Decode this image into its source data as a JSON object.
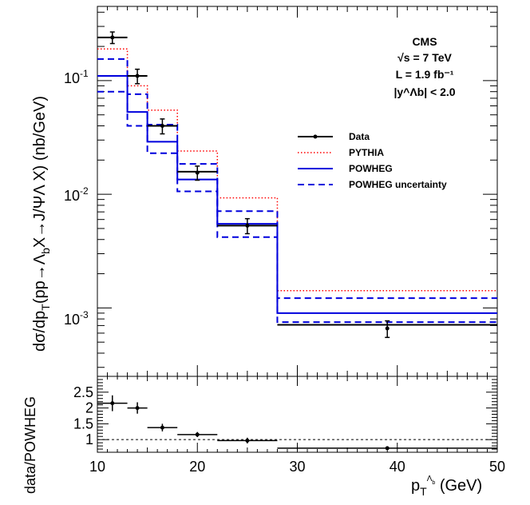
{
  "chart_data": [
    {
      "type": "step",
      "ylabel": "dσ/dp_T(pp→Λ_bX→J/ΨΛ X) (nb/GeV)",
      "yscale": "log",
      "xlim": [
        10,
        50
      ],
      "ylim": [
        0.00025,
        0.45
      ],
      "y_tick_labels": [
        {
          "value": 0.1,
          "base": "10",
          "exp": "-1"
        },
        {
          "value": 0.01,
          "base": "10",
          "exp": "-2"
        },
        {
          "value": 0.001,
          "base": "10",
          "exp": "-3"
        }
      ],
      "annotation": {
        "experiment": "CMS",
        "energy": "√s = 7 TeV",
        "lumi": "L = 1.9 fb⁻¹",
        "rapidity": "|y^Λb| < 2.0"
      },
      "legend_position": "right-middle",
      "bin_edges": [
        10,
        13,
        15,
        18,
        22,
        28,
        50
      ],
      "series": [
        {
          "name": "Data",
          "style": "points",
          "x": [
            11.5,
            14,
            16.5,
            20,
            25,
            39
          ],
          "y": [
            0.24,
            0.11,
            0.04,
            0.0155,
            0.0053,
            0.00066
          ],
          "err": [
            0.028,
            0.016,
            0.006,
            0.0022,
            0.0008,
            0.00011
          ],
          "xerr_low": [
            1.5,
            1,
            1.5,
            2,
            3,
            11
          ],
          "xerr_high": [
            1.5,
            1,
            1.5,
            2,
            3,
            11
          ],
          "bar": [
            0.24,
            0.11,
            0.04,
            0.0158,
            0.0053,
            0.00071
          ],
          "color": "#000000"
        },
        {
          "name": "PYTHIA",
          "style": "dotted",
          "values": [
            0.19,
            0.09,
            0.055,
            0.024,
            0.0093,
            0.00142
          ],
          "color": "#ff0000"
        },
        {
          "name": "POWHEG",
          "style": "solid",
          "values": [
            0.11,
            0.053,
            0.029,
            0.0135,
            0.0055,
            0.0009
          ],
          "color": "#0000dd"
        },
        {
          "name": "POWHEG uncertainty",
          "style": "dashed",
          "upper": [
            0.155,
            0.076,
            0.041,
            0.0185,
            0.0071,
            0.00122
          ],
          "lower": [
            0.08,
            0.04,
            0.023,
            0.0106,
            0.0042,
            0.00075
          ],
          "color": "#0000dd"
        }
      ]
    },
    {
      "type": "scatter",
      "xlabel": "p_T^Λb (GeV)",
      "ylabel": "data/POWHEG",
      "xlim": [
        10,
        50
      ],
      "ylim": [
        0.6,
        3.0
      ],
      "x_ticks": [
        10,
        20,
        30,
        40,
        50
      ],
      "y_ticks": [
        1,
        1.5,
        2,
        2.5
      ],
      "y_tick_labels": [
        "1",
        "1.5",
        "2",
        "2.5"
      ],
      "reference_line": 1,
      "series": [
        {
          "name": "",
          "x": [
            11.5,
            14,
            16.5,
            20,
            25,
            39
          ],
          "y": [
            2.15,
            2.0,
            1.38,
            1.16,
            0.97,
            0.73
          ],
          "err": [
            0.25,
            0.18,
            0.12,
            0.08,
            0.09,
            0.06
          ],
          "xerr": [
            1.5,
            1,
            1.5,
            2,
            3,
            11
          ],
          "color": "#000000"
        }
      ]
    }
  ]
}
